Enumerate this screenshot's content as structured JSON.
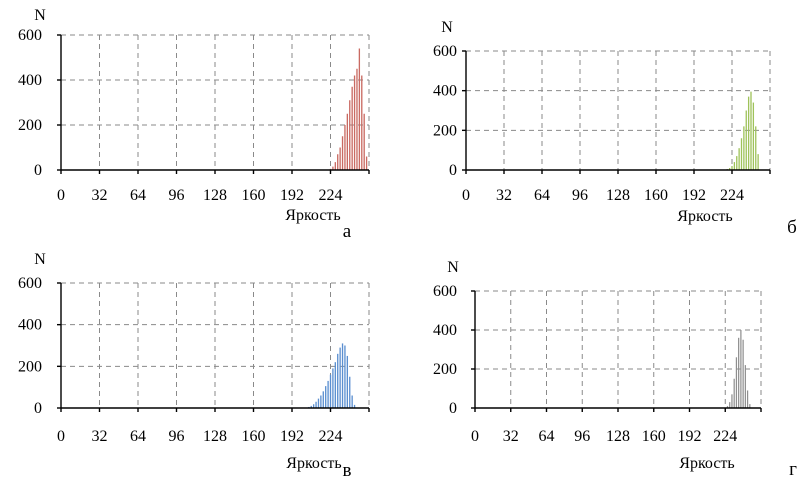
{
  "chart_data": [
    {
      "type": "bar",
      "panel_label": "а",
      "xlabel": "Яркость",
      "ylabel": "N",
      "xlim": [
        0,
        256
      ],
      "ylim": [
        0,
        600
      ],
      "x_ticks": [
        "0",
        "32",
        "64",
        "96",
        "128",
        "160",
        "192",
        "224"
      ],
      "y_ticks": [
        "0",
        "200",
        "400",
        "600"
      ],
      "grid": true,
      "color": "#c96a62",
      "x": [
        224,
        226,
        228,
        230,
        232,
        234,
        236,
        238,
        240,
        242,
        244,
        246,
        248,
        250,
        252,
        254
      ],
      "values": [
        5,
        15,
        35,
        70,
        100,
        150,
        200,
        250,
        310,
        370,
        420,
        450,
        540,
        420,
        250,
        60
      ]
    },
    {
      "type": "bar",
      "panel_label": "б",
      "xlabel": "Яркость",
      "ylabel": "N",
      "xlim": [
        0,
        256
      ],
      "ylim": [
        0,
        600
      ],
      "x_ticks": [
        "0",
        "32",
        "64",
        "96",
        "128",
        "160",
        "192",
        "224"
      ],
      "y_ticks": [
        "0",
        "200",
        "400",
        "600"
      ],
      "grid": true,
      "color": "#9fc25a",
      "x": [
        220,
        222,
        224,
        226,
        228,
        230,
        232,
        234,
        236,
        238,
        240,
        242,
        244,
        246
      ],
      "values": [
        5,
        10,
        20,
        40,
        70,
        110,
        160,
        220,
        300,
        370,
        395,
        340,
        220,
        80
      ]
    },
    {
      "type": "bar",
      "panel_label": "в",
      "xlabel": "Яркость",
      "ylabel": "N",
      "xlim": [
        0,
        256
      ],
      "ylim": [
        0,
        600
      ],
      "x_ticks": [
        "0",
        "32",
        "64",
        "96",
        "128",
        "160",
        "192",
        "224"
      ],
      "y_ticks": [
        "0",
        "200",
        "400",
        "600"
      ],
      "grid": true,
      "color": "#5b8fd0",
      "x": [
        206,
        208,
        210,
        212,
        214,
        216,
        218,
        220,
        222,
        224,
        226,
        228,
        230,
        232,
        234,
        236,
        238,
        240,
        242,
        244
      ],
      "values": [
        5,
        10,
        18,
        30,
        45,
        60,
        80,
        105,
        130,
        160,
        190,
        220,
        260,
        290,
        310,
        300,
        250,
        150,
        60,
        15
      ]
    },
    {
      "type": "bar",
      "panel_label": "г",
      "xlabel": "Яркость",
      "ylabel": "N",
      "xlim": [
        0,
        256
      ],
      "ylim": [
        0,
        600
      ],
      "x_ticks": [
        "0",
        "32",
        "64",
        "96",
        "128",
        "160",
        "192",
        "224"
      ],
      "y_ticks": [
        "0",
        "200",
        "400",
        "600"
      ],
      "grid": true,
      "color": "#8f8f8f",
      "x": [
        226,
        228,
        230,
        232,
        234,
        236,
        238,
        240,
        242,
        244,
        246
      ],
      "values": [
        10,
        30,
        70,
        150,
        260,
        360,
        400,
        350,
        220,
        90,
        20
      ]
    }
  ]
}
